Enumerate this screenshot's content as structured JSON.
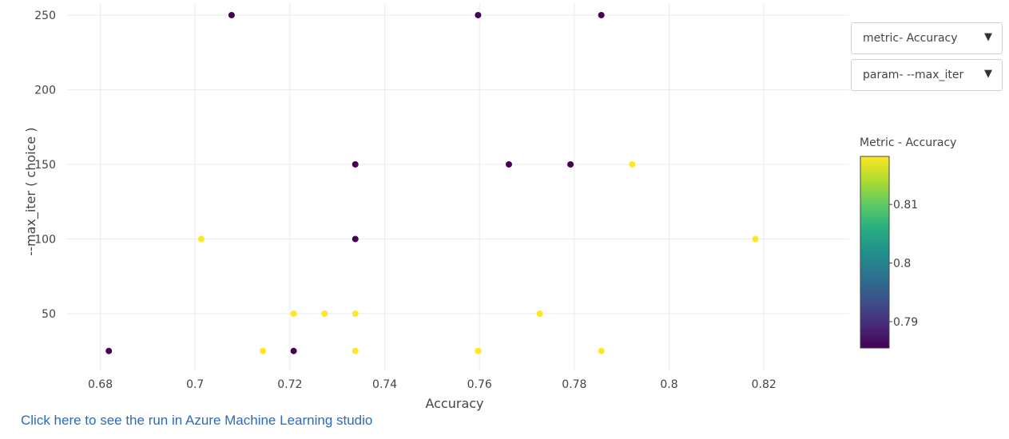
{
  "chart_data": {
    "type": "scatter",
    "xlabel": "Accuracy",
    "ylabel": "--max_iter ( choice )",
    "xlim": [
      0.673,
      0.838
    ],
    "ylim": [
      12,
      258
    ],
    "x_ticks": [
      0.68,
      0.7,
      0.72,
      0.74,
      0.76,
      0.78,
      0.8,
      0.82
    ],
    "x_tick_labels": [
      "0.68",
      "0.7",
      "0.72",
      "0.74",
      "0.76",
      "0.78",
      "0.8",
      "0.82"
    ],
    "y_ticks": [
      50,
      100,
      150,
      200,
      250
    ],
    "y_tick_labels": [
      "50",
      "100",
      "150",
      "200",
      "250"
    ],
    "grid": true,
    "colorscale": "viridis",
    "color_min": 0.7855,
    "color_max": 0.8182,
    "colorbar": {
      "title": "Metric - Accuracy",
      "ticks": [
        0.79,
        0.8,
        0.81
      ],
      "tick_labels": [
        "0.79",
        "0.8",
        "0.81"
      ]
    },
    "points": [
      {
        "x": 0.7077,
        "y": 250,
        "c": 0.7855
      },
      {
        "x": 0.7597,
        "y": 250,
        "c": 0.7855
      },
      {
        "x": 0.7857,
        "y": 250,
        "c": 0.7855
      },
      {
        "x": 0.7338,
        "y": 150,
        "c": 0.7855
      },
      {
        "x": 0.7662,
        "y": 150,
        "c": 0.7855
      },
      {
        "x": 0.7792,
        "y": 150,
        "c": 0.7855
      },
      {
        "x": 0.7922,
        "y": 150,
        "c": 0.8182
      },
      {
        "x": 0.7013,
        "y": 100,
        "c": 0.8182
      },
      {
        "x": 0.7338,
        "y": 100,
        "c": 0.7855
      },
      {
        "x": 0.8182,
        "y": 100,
        "c": 0.8182
      },
      {
        "x": 0.7208,
        "y": 50,
        "c": 0.8182
      },
      {
        "x": 0.7273,
        "y": 50,
        "c": 0.8182
      },
      {
        "x": 0.7338,
        "y": 50,
        "c": 0.8182
      },
      {
        "x": 0.7727,
        "y": 50,
        "c": 0.8182
      },
      {
        "x": 0.6818,
        "y": 25,
        "c": 0.7855
      },
      {
        "x": 0.7143,
        "y": 25,
        "c": 0.8182
      },
      {
        "x": 0.7208,
        "y": 25,
        "c": 0.7855
      },
      {
        "x": 0.7338,
        "y": 25,
        "c": 0.8182
      },
      {
        "x": 0.7597,
        "y": 25,
        "c": 0.8182
      },
      {
        "x": 0.7857,
        "y": 25,
        "c": 0.8182
      }
    ]
  },
  "controls": {
    "metric_dropdown": "metric- Accuracy",
    "param_dropdown": "param- --max_iter",
    "dropdown_arrow": "▼"
  },
  "link": {
    "text": "Click here to see the run in Azure Machine Learning studio"
  }
}
